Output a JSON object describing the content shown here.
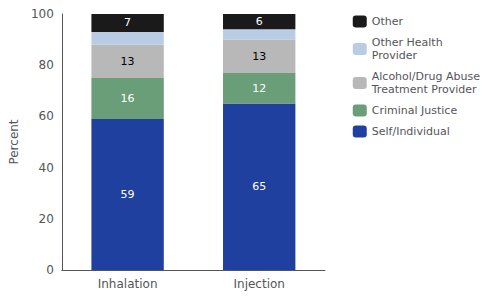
{
  "chart_data": {
    "type": "bar",
    "stacked": true,
    "categories": [
      "Inhalation",
      "Injection"
    ],
    "series": [
      {
        "name": "Self/Individual",
        "color": "#2040a0",
        "values": [
          59,
          65
        ],
        "data_labels": true
      },
      {
        "name": "Criminal Justice",
        "color": "#6a9e78",
        "values": [
          16,
          12
        ],
        "data_labels": true
      },
      {
        "name": "Alcohol/Drug Abuse\nTreatment Provider",
        "color": "#b8b8b8",
        "values": [
          13,
          13
        ],
        "data_labels": true
      },
      {
        "name": "Other Health\nProvider",
        "color": "#b8cce4",
        "values": [
          5,
          4
        ],
        "data_labels": false
      },
      {
        "name": "Other",
        "color": "#1a1a1a",
        "values": [
          7,
          6
        ],
        "data_labels": true
      }
    ],
    "ylabel": "Percent",
    "ylim": [
      0,
      100
    ],
    "yticks": [
      0,
      20,
      40,
      60,
      80,
      100
    ],
    "grid": false,
    "legend": "upper right"
  }
}
